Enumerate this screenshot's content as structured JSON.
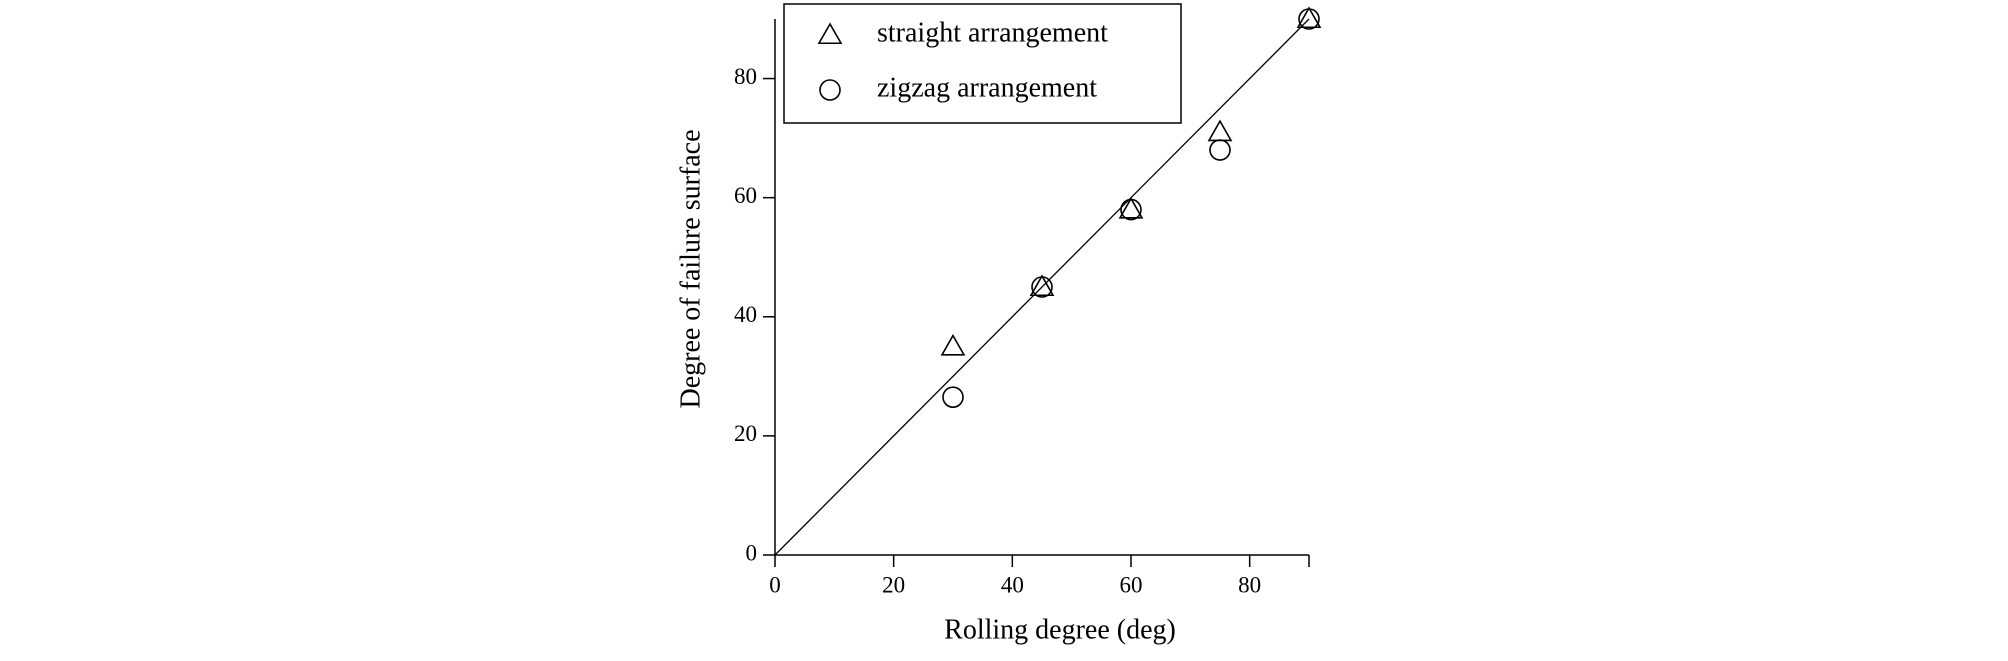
{
  "chart_data": {
    "type": "scatter",
    "x_label": "Rolling degree (deg)",
    "y_label": "Degree of failure surface",
    "xlim": [
      0,
      90
    ],
    "ylim": [
      0,
      90
    ],
    "xticks": [
      0,
      20,
      40,
      60,
      80
    ],
    "yticks": [
      0,
      20,
      40,
      60,
      80
    ],
    "legend": "top-left",
    "series": [
      {
        "name": "straight arrangement",
        "marker": "triangle",
        "color": "#000000",
        "x": [
          30,
          45,
          60,
          75,
          90
        ],
        "values": [
          35,
          45,
          58,
          71,
          90
        ]
      },
      {
        "name": "zigzag arrangement",
        "marker": "circle",
        "color": "#000000",
        "x": [
          30,
          45,
          60,
          75,
          90
        ],
        "values": [
          26.5,
          45,
          58,
          68,
          90
        ]
      }
    ],
    "reference_line": {
      "x": [
        0,
        90
      ],
      "values": [
        0,
        90
      ],
      "color": "#000000"
    }
  }
}
